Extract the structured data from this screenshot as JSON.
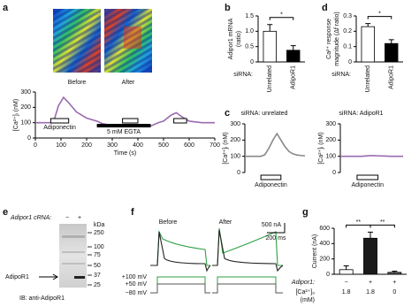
{
  "panel_labels": [
    "a",
    "b",
    "c",
    "d",
    "e",
    "f",
    "g"
  ],
  "panel_a": {
    "image_labels": [
      "Before",
      "After"
    ]
  },
  "panel_e": {
    "header": "Adipor1 cRNA:",
    "lanes": [
      "−",
      "+"
    ],
    "unit": "kDa",
    "markers": [
      "250",
      "100",
      "75",
      "50",
      "37",
      "25"
    ],
    "band_label": "AdipoR1",
    "footer": "IB: anti-AdipoR1"
  },
  "panel_f": {
    "titles": [
      "Before",
      "After"
    ],
    "scale": [
      "500 nA",
      "200 ms"
    ],
    "voltages": [
      "+100 mV",
      "+50 mV",
      "−80 mV"
    ]
  },
  "chart_data": [
    {
      "type": "line",
      "y_label": "[Ca²⁺]ᵢ (nM)",
      "x_label": "Time (s)",
      "x": [
        0,
        40,
        70,
        90,
        110,
        130,
        160,
        200,
        240,
        260,
        300,
        350,
        400,
        450,
        480,
        500,
        530,
        550,
        570,
        600,
        650,
        700
      ],
      "values": [
        100,
        100,
        100,
        210,
        265,
        230,
        170,
        130,
        110,
        95,
        80,
        75,
        75,
        78,
        100,
        110,
        150,
        165,
        140,
        110,
        100,
        100
      ],
      "color": "#9b6bb0",
      "xlim": [
        0,
        700
      ],
      "xticks": [
        0,
        100,
        200,
        300,
        400,
        500,
        600,
        700
      ],
      "ylim": [
        0,
        300
      ],
      "yticks": [
        0,
        100,
        200,
        300
      ],
      "annotations": [
        "Adiponectin",
        "5 mM EGTA"
      ]
    },
    {
      "type": "bar",
      "y_label": [
        "Adipor1 mRNA",
        "(ratio)"
      ],
      "group_label": "siRNA:",
      "categories": [
        "Unrelated",
        "AdipoR1"
      ],
      "values": [
        1.0,
        0.38
      ],
      "errors": [
        0.22,
        0.15
      ],
      "colors": [
        "#ffffff",
        "#000000"
      ],
      "ylim": [
        0,
        1.5
      ],
      "yticks": [
        0,
        0.5,
        {
          "value": 1,
          "label": "1.0"
        },
        1.5
      ],
      "significance": [
        "*"
      ]
    },
    {
      "type": "bar",
      "y_label": [
        "Ca²⁺ response",
        "magnitude (Δf ratio)"
      ],
      "group_label": "siRNA:",
      "categories": [
        "Unrelated",
        "AdipoR1"
      ],
      "values": [
        0.23,
        0.12
      ],
      "errors": [
        0.02,
        0.025
      ],
      "colors": [
        "#ffffff",
        "#000000"
      ],
      "ylim": [
        0,
        0.3
      ],
      "yticks": [
        0,
        0.1,
        0.2,
        0.3
      ],
      "significance": [
        "*"
      ]
    },
    {
      "type": "line",
      "title": "siRNA: unrelated",
      "y_label": "[Ca²⁺]ᵢ (nM)",
      "values": [
        100,
        100,
        100,
        100,
        100,
        110,
        150,
        200,
        240,
        200,
        160,
        130,
        115,
        108,
        105,
        103
      ],
      "color": "#888888",
      "ylim": [
        0,
        300
      ],
      "yticks": [
        0,
        100,
        200,
        300
      ],
      "annotations": [
        "Adiponectin"
      ]
    },
    {
      "type": "line",
      "title": "siRNA: AdipoR1",
      "y_label": "[Ca²⁺]ᵢ (nM)",
      "values": [
        100,
        100,
        100,
        100,
        100,
        100,
        102,
        104,
        104,
        103,
        102,
        101,
        100,
        100,
        100,
        100
      ],
      "color": "#9b6bb0",
      "ylim": [
        0,
        300
      ],
      "yticks": [
        0,
        100,
        200,
        300
      ],
      "annotations": [
        "Adiponectin"
      ]
    },
    {
      "type": "bar",
      "y_label": "Current (nA)",
      "category_label": "Adipor1:",
      "categories": [
        "−",
        "+",
        "+"
      ],
      "ca_label": [
        "[Ca²⁺]ₒ",
        "(mM)"
      ],
      "ca_values": [
        1.8,
        1.8,
        0
      ],
      "values": [
        60,
        470,
        25
      ],
      "errors": [
        50,
        80,
        15
      ],
      "colors": [
        "#ffffff",
        "#1a1a1a",
        "#555555"
      ],
      "ylim": [
        0,
        600
      ],
      "yticks": [
        0,
        200,
        400,
        600
      ],
      "significance": [
        "**",
        "**"
      ]
    }
  ]
}
